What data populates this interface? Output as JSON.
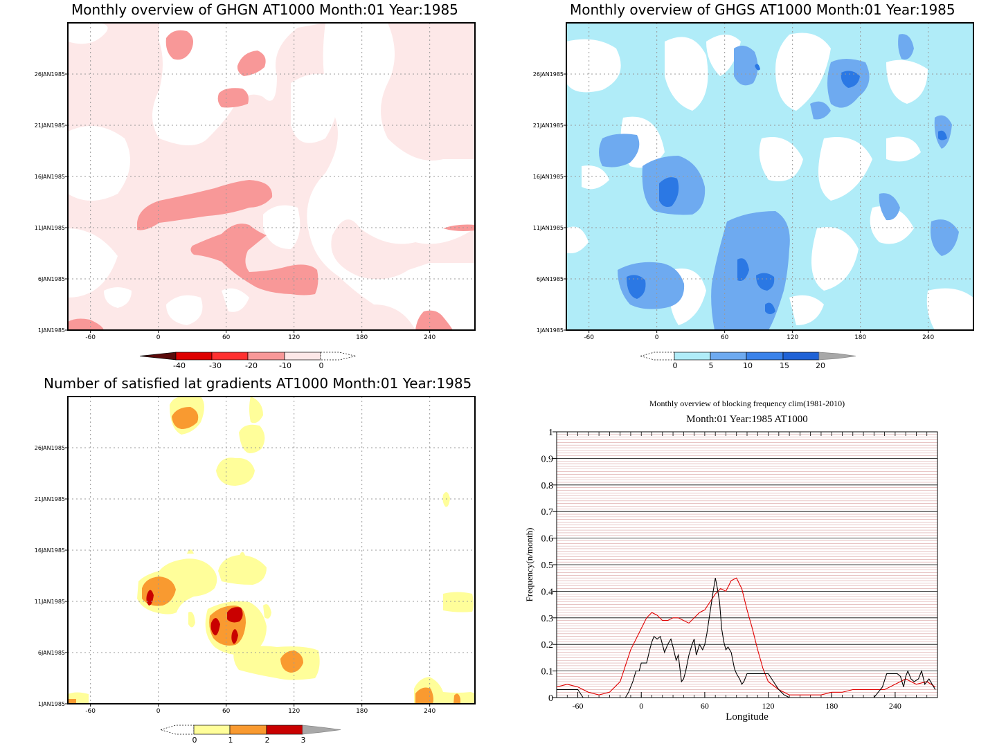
{
  "chart_data": [
    {
      "type": "heatmap",
      "title": "Monthly overview of GHGN AT1000 Month:01 Year:1985",
      "xticks": [
        "-60",
        "0",
        "60",
        "120",
        "180",
        "240"
      ],
      "xtick_values": [
        -60,
        0,
        60,
        120,
        180,
        240
      ],
      "xlim": [
        -80,
        280
      ],
      "yticks": [
        "1JAN1985",
        "6JAN1985",
        "11JAN1985",
        "16JAN1985",
        "21JAN1985",
        "26JAN1985"
      ],
      "ytick_values": [
        1,
        6,
        11,
        16,
        21,
        26
      ],
      "ylim": [
        1,
        31
      ],
      "colorbar": {
        "labels": [
          "-40",
          "-30",
          "-20",
          "-10",
          "0"
        ],
        "colors": [
          "#5a0a0a",
          "#dd0000",
          "#ff3030",
          "#f89898",
          "#fde8e8"
        ],
        "extend": "both"
      },
      "field_colors": {
        "light": "#fde8e8",
        "medium": "#f89898"
      }
    },
    {
      "type": "heatmap",
      "title": "Monthly overview of GHGS AT1000 Month:01 Year:1985",
      "xticks": [
        "-60",
        "0",
        "60",
        "120",
        "180",
        "240"
      ],
      "xtick_values": [
        -60,
        0,
        60,
        120,
        180,
        240
      ],
      "xlim": [
        -80,
        280
      ],
      "yticks": [
        "1JAN1985",
        "6JAN1985",
        "11JAN1985",
        "16JAN1985",
        "21JAN1985",
        "26JAN1985"
      ],
      "ytick_values": [
        1,
        6,
        11,
        16,
        21,
        26
      ],
      "ylim": [
        1,
        31
      ],
      "colorbar": {
        "labels": [
          "0",
          "5",
          "10",
          "15",
          "20"
        ],
        "colors": [
          "#b0ecf8",
          "#6eaaf0",
          "#3a82ea",
          "#1f62d6",
          "#a8a8a8"
        ],
        "extend": "both"
      },
      "field_colors": {
        "light": "#b0ecf8",
        "medium": "#6eaaf0",
        "dark": "#2b78e4"
      }
    },
    {
      "type": "heatmap",
      "title": "Number of satisfied lat gradients AT1000 Month:01 Year:1985",
      "xticks": [
        "-60",
        "0",
        "60",
        "120",
        "180",
        "240"
      ],
      "xtick_values": [
        -60,
        0,
        60,
        120,
        180,
        240
      ],
      "xlim": [
        -80,
        280
      ],
      "yticks": [
        "1JAN1985",
        "6JAN1985",
        "11JAN1985",
        "16JAN1985",
        "21JAN1985",
        "26JAN1985"
      ],
      "ytick_values": [
        1,
        6,
        11,
        16,
        21,
        26
      ],
      "ylim": [
        1,
        31
      ],
      "colorbar": {
        "labels": [
          "0",
          "1",
          "2",
          "3"
        ],
        "colors": [
          "#fffe9a",
          "#f99a30",
          "#c90000",
          "#a8a8a8"
        ],
        "extend": "both"
      },
      "field_colors": {
        "one": "#fffe9a",
        "two": "#f99a30",
        "three": "#c90000"
      }
    },
    {
      "type": "line",
      "title": "Monthly overview of blocking frequency clim(1981-2010)",
      "subtitle": "Month:01 Year:1985  AT1000",
      "xlabel": "Longitude",
      "ylabel": "Frequency(n/month)",
      "xlim": [
        -80,
        280
      ],
      "ylim": [
        0,
        1
      ],
      "xticks": [
        "-60",
        "0",
        "60",
        "120",
        "180",
        "240"
      ],
      "xtick_values": [
        -60,
        0,
        60,
        120,
        180,
        240
      ],
      "yticks": [
        "0",
        "0.1",
        "0.2",
        "0.3",
        "0.4",
        "0.5",
        "0.6",
        "0.7",
        "0.8",
        "0.9",
        "1"
      ],
      "grid": true,
      "series": [
        {
          "color": "#e00000",
          "x": [
            -80,
            -70,
            -60,
            -50,
            -40,
            -30,
            -20,
            -15,
            -10,
            -5,
            0,
            5,
            10,
            15,
            20,
            25,
            30,
            35,
            40,
            45,
            50,
            55,
            60,
            65,
            70,
            75,
            80,
            85,
            90,
            95,
            100,
            105,
            110,
            115,
            120,
            130,
            140,
            150,
            160,
            170,
            180,
            190,
            200,
            210,
            220,
            230,
            240,
            250,
            260,
            270,
            278
          ],
          "y": [
            0.04,
            0.05,
            0.04,
            0.02,
            0.01,
            0.02,
            0.06,
            0.12,
            0.18,
            0.22,
            0.26,
            0.3,
            0.32,
            0.31,
            0.29,
            0.29,
            0.3,
            0.3,
            0.29,
            0.28,
            0.3,
            0.32,
            0.33,
            0.36,
            0.39,
            0.41,
            0.4,
            0.44,
            0.45,
            0.41,
            0.33,
            0.26,
            0.18,
            0.11,
            0.06,
            0.03,
            0.01,
            0.01,
            0.01,
            0.01,
            0.02,
            0.02,
            0.03,
            0.03,
            0.03,
            0.03,
            0.05,
            0.07,
            0.05,
            0.06,
            0.04
          ]
        },
        {
          "color": "#000000",
          "x": [
            -80,
            -60,
            -55,
            -50,
            -20,
            -15,
            -12,
            -10,
            -8,
            -5,
            -2,
            0,
            5,
            8,
            10,
            12,
            15,
            18,
            22,
            25,
            28,
            30,
            33,
            35,
            38,
            40,
            42,
            45,
            48,
            50,
            52,
            55,
            58,
            60,
            62,
            65,
            68,
            70,
            72,
            74,
            76,
            78,
            80,
            82,
            85,
            88,
            90,
            93,
            95,
            97,
            100,
            120,
            125,
            130,
            135,
            140,
            180,
            220,
            228,
            232,
            236,
            242,
            245,
            248,
            250,
            252,
            255,
            258,
            262,
            265,
            268,
            272,
            278
          ],
          "y": [
            0.03,
            0.03,
            0.0,
            0.0,
            0.0,
            0.0,
            0.02,
            0.04,
            0.06,
            0.1,
            0.1,
            0.13,
            0.13,
            0.18,
            0.21,
            0.23,
            0.22,
            0.23,
            0.17,
            0.2,
            0.22,
            0.19,
            0.14,
            0.16,
            0.06,
            0.07,
            0.1,
            0.16,
            0.2,
            0.22,
            0.16,
            0.2,
            0.18,
            0.2,
            0.24,
            0.32,
            0.4,
            0.45,
            0.41,
            0.36,
            0.26,
            0.21,
            0.18,
            0.19,
            0.17,
            0.11,
            0.09,
            0.07,
            0.05,
            0.06,
            0.09,
            0.09,
            0.06,
            0.03,
            0.01,
            0.0,
            0.0,
            0.0,
            0.04,
            0.09,
            0.09,
            0.09,
            0.08,
            0.04,
            0.08,
            0.1,
            0.07,
            0.06,
            0.07,
            0.1,
            0.05,
            0.07,
            0.03
          ]
        }
      ]
    }
  ]
}
